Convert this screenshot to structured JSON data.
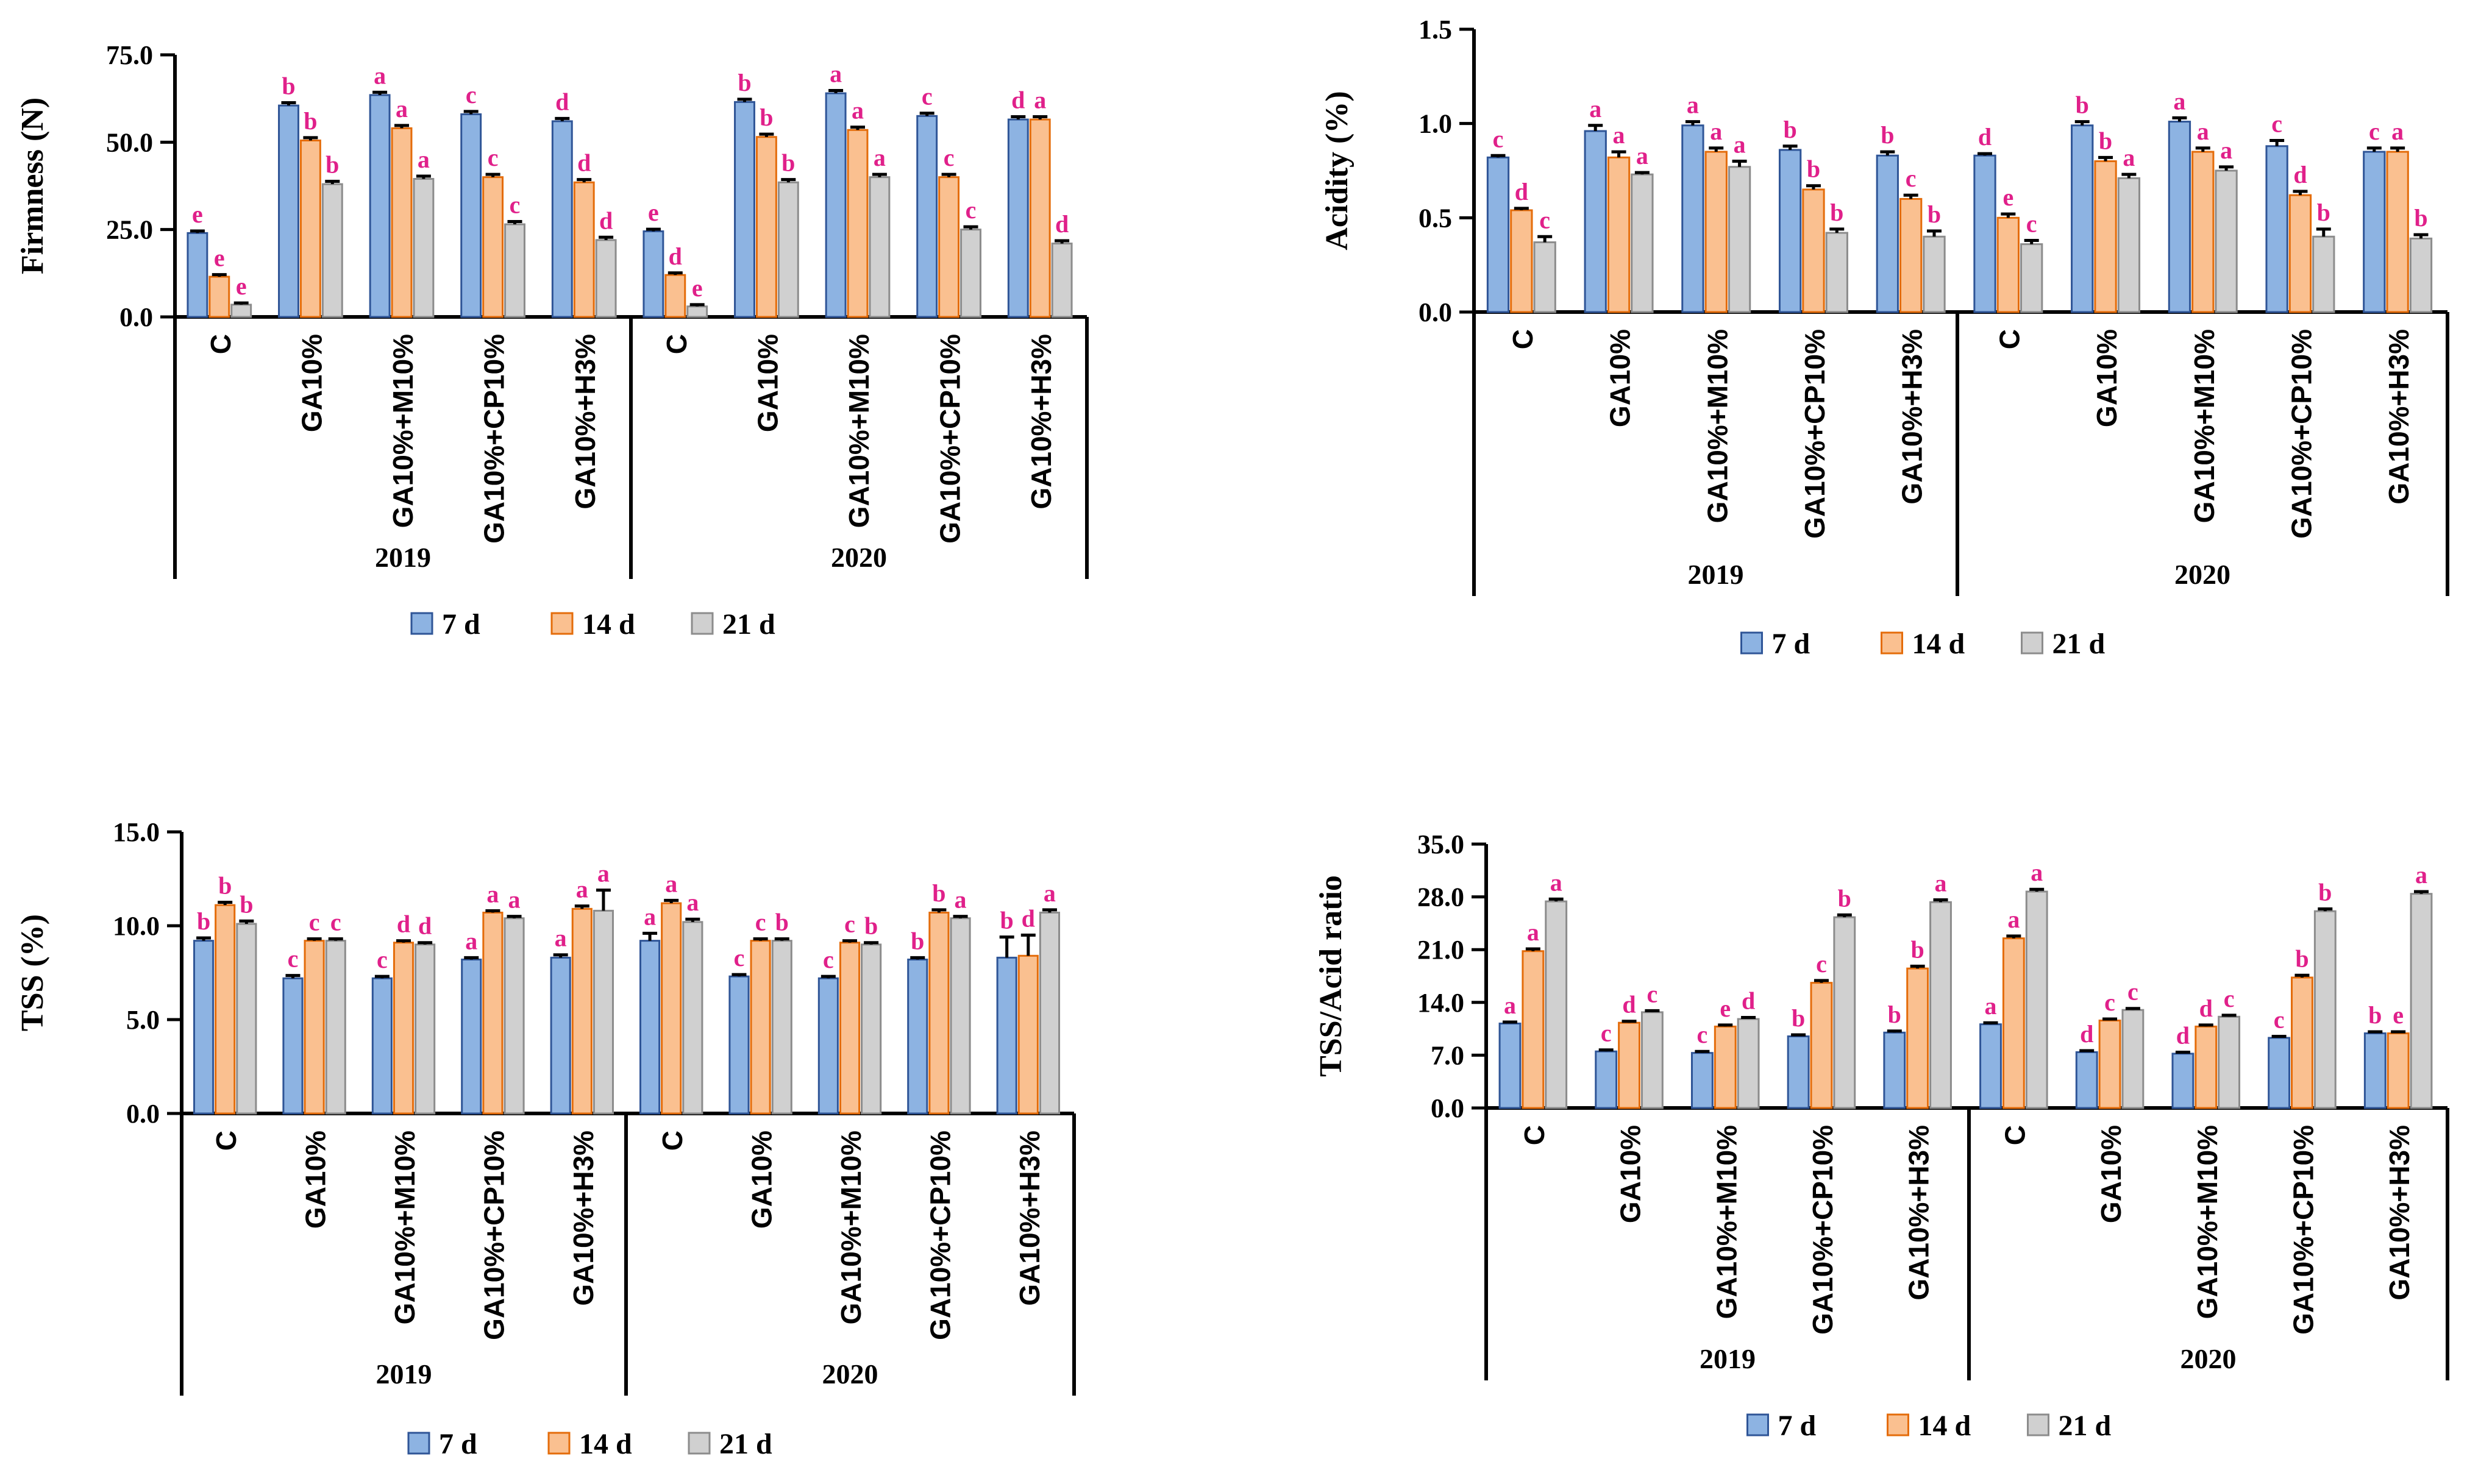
{
  "colors": {
    "d7": "#8DB3E2",
    "d7_stroke": "#2F5597",
    "d14": "#FAC090",
    "d14_stroke": "#E46C0A",
    "d21": "#D0D0D0",
    "d21_stroke": "#8C8C8C",
    "letters": "#E0208A",
    "axis": "#000000"
  },
  "chart_data": [
    {
      "type": "bar",
      "title": "",
      "ylabel": "Firmness (N)",
      "xlabel": "",
      "ylim": [
        0,
        75
      ],
      "yticks": [
        "0.0",
        "25.0",
        "50.0",
        "75.0"
      ],
      "years": [
        "2019",
        "2020"
      ],
      "categories": [
        "C",
        "GA10%",
        "GA10%+M10%",
        "GA10%+CP10%",
        "GA10%+H3%",
        "C",
        "GA10%",
        "GA10%+M10%",
        "GA10%+CP10%",
        "GA10%+H3%"
      ],
      "series": [
        {
          "name": "7 d",
          "values": [
            24,
            60.5,
            63.5,
            58,
            56,
            24.5,
            61.5,
            64,
            57.5,
            56.5
          ],
          "errors": [
            0.6,
            0.8,
            0.8,
            0.8,
            0.8,
            0.6,
            0.8,
            0.8,
            0.8,
            0.8
          ],
          "letters": [
            "e",
            "b",
            "a",
            "c",
            "d",
            "e",
            "b",
            "a",
            "c",
            "d"
          ]
        },
        {
          "name": "14 d",
          "values": [
            11.5,
            50.5,
            54,
            40,
            38.5,
            12,
            51.5,
            53.5,
            40,
            56.5
          ],
          "errors": [
            0.6,
            0.8,
            0.8,
            0.8,
            0.8,
            0.6,
            0.8,
            0.8,
            0.8,
            0.8
          ],
          "letters": [
            "e",
            "b",
            "a",
            "c",
            "d",
            "d",
            "b",
            "a",
            "c",
            "a"
          ]
        },
        {
          "name": "21 d",
          "values": [
            3.5,
            38,
            39.5,
            26.5,
            22,
            3,
            38.5,
            40,
            25,
            21
          ],
          "errors": [
            0.5,
            0.8,
            0.8,
            0.8,
            0.8,
            0.5,
            0.8,
            0.8,
            0.8,
            0.8
          ],
          "letters": [
            "e",
            "b",
            "a",
            "c",
            "d",
            "e",
            "b",
            "a",
            "c",
            "d"
          ]
        }
      ],
      "legend": [
        "7 d",
        "14 d",
        "21 d"
      ]
    },
    {
      "type": "bar",
      "title": "",
      "ylabel": "Acidity (%)",
      "xlabel": "",
      "ylim": [
        0,
        1.5
      ],
      "yticks": [
        "0.0",
        "0.5",
        "1.0",
        "1.5"
      ],
      "years": [
        "2019",
        "2020"
      ],
      "categories": [
        "C",
        "GA10%",
        "GA10%+M10%",
        "GA10%+CP10%",
        "GA10%+H3%",
        "C",
        "GA10%",
        "GA10%+M10%",
        "GA10%+CP10%",
        "GA10%+H3%"
      ],
      "series": [
        {
          "name": "7 d",
          "values": [
            0.82,
            0.96,
            0.99,
            0.86,
            0.83,
            0.83,
            0.99,
            1.01,
            0.88,
            0.85
          ],
          "errors": [
            0.01,
            0.03,
            0.02,
            0.02,
            0.02,
            0.01,
            0.02,
            0.02,
            0.03,
            0.02
          ],
          "letters": [
            "c",
            "a",
            "a",
            "b",
            "b",
            "d",
            "b",
            "a",
            "c",
            "c"
          ]
        },
        {
          "name": "14 d",
          "values": [
            0.54,
            0.82,
            0.85,
            0.65,
            0.6,
            0.5,
            0.8,
            0.85,
            0.62,
            0.85
          ],
          "errors": [
            0.01,
            0.03,
            0.02,
            0.02,
            0.02,
            0.02,
            0.02,
            0.02,
            0.02,
            0.02
          ],
          "letters": [
            "d",
            "a",
            "a",
            "b",
            "c",
            "e",
            "b",
            "a",
            "d",
            "a"
          ]
        },
        {
          "name": "21 d",
          "values": [
            0.37,
            0.73,
            0.77,
            0.42,
            0.4,
            0.36,
            0.71,
            0.75,
            0.4,
            0.39
          ],
          "errors": [
            0.03,
            0.01,
            0.03,
            0.02,
            0.03,
            0.02,
            0.02,
            0.02,
            0.04,
            0.02
          ],
          "letters": [
            "c",
            "a",
            "a",
            "b",
            "b",
            "c",
            "a",
            "a",
            "b",
            "b"
          ]
        }
      ],
      "legend": [
        "7 d",
        "14 d",
        "21 d"
      ]
    },
    {
      "type": "bar",
      "title": "",
      "ylabel": "TSS (%)",
      "xlabel": "",
      "ylim": [
        0,
        15
      ],
      "yticks": [
        "0.0",
        "5.0",
        "10.0",
        "15.0"
      ],
      "years": [
        "2019",
        "2020"
      ],
      "categories": [
        "C",
        "GA10%",
        "GA10%+M10%",
        "GA10%+CP10%",
        "GA10%+H3%",
        "C",
        "GA10%",
        "GA10%+M10%",
        "GA10%+CP10%",
        "GA10%+H3%"
      ],
      "series": [
        {
          "name": "7 d",
          "values": [
            9.2,
            7.2,
            7.2,
            8.2,
            8.3,
            9.2,
            7.3,
            7.2,
            8.2,
            8.3
          ],
          "errors": [
            0.15,
            0.15,
            0.1,
            0.1,
            0.15,
            0.4,
            0.1,
            0.1,
            0.1,
            1.1
          ],
          "letters": [
            "b",
            "c",
            "c",
            "a",
            "a",
            "a",
            "c",
            "c",
            "b",
            "b"
          ]
        },
        {
          "name": "14 d",
          "values": [
            11.1,
            9.2,
            9.1,
            10.7,
            10.9,
            11.2,
            9.2,
            9.1,
            10.7,
            8.4
          ],
          "errors": [
            0.15,
            0.1,
            0.1,
            0.1,
            0.15,
            0.15,
            0.1,
            0.1,
            0.15,
            1.1
          ],
          "letters": [
            "b",
            "c",
            "d",
            "a",
            "a",
            "a",
            "c",
            "c",
            "b",
            "d"
          ]
        },
        {
          "name": "21 d",
          "values": [
            10.1,
            9.2,
            9.0,
            10.4,
            10.8,
            10.2,
            9.2,
            9.0,
            10.4,
            10.7
          ],
          "errors": [
            0.15,
            0.1,
            0.1,
            0.1,
            1.1,
            0.15,
            0.1,
            0.1,
            0.1,
            0.15
          ],
          "letters": [
            "b",
            "c",
            "d",
            "a",
            "a",
            "a",
            "b",
            "b",
            "a",
            "a"
          ]
        }
      ],
      "legend": [
        "7 d",
        "14 d",
        "21 d"
      ]
    },
    {
      "type": "bar",
      "title": "",
      "ylabel": "TSS/Acid ratio",
      "xlabel": "",
      "ylim": [
        0,
        35
      ],
      "yticks": [
        "0.0",
        "7.0",
        "14.0",
        "21.0",
        "28.0",
        "35.0"
      ],
      "years": [
        "2019",
        "2020"
      ],
      "categories": [
        "C",
        "GA10%",
        "GA10%+M10%",
        "GA10%+CP10%",
        "GA10%+H3%",
        "C",
        "GA10%",
        "GA10%+M10%",
        "GA10%+CP10%",
        "GA10%+H3%"
      ],
      "series": [
        {
          "name": "7 d",
          "values": [
            11.2,
            7.5,
            7.3,
            9.5,
            10.0,
            11.1,
            7.4,
            7.2,
            9.3,
            9.9
          ],
          "errors": [
            0.2,
            0.2,
            0.2,
            0.2,
            0.2,
            0.2,
            0.2,
            0.2,
            0.2,
            0.2
          ],
          "letters": [
            "a",
            "c",
            "c",
            "b",
            "b",
            "a",
            "d",
            "d",
            "c",
            "b"
          ]
        },
        {
          "name": "14 d",
          "values": [
            20.8,
            11.3,
            10.8,
            16.6,
            18.5,
            22.5,
            11.6,
            10.8,
            17.3,
            9.9
          ],
          "errors": [
            0.3,
            0.2,
            0.2,
            0.3,
            0.3,
            0.3,
            0.2,
            0.2,
            0.3,
            0.2
          ],
          "letters": [
            "a",
            "d",
            "e",
            "c",
            "b",
            "a",
            "c",
            "d",
            "b",
            "e"
          ]
        },
        {
          "name": "21 d",
          "values": [
            27.4,
            12.7,
            11.8,
            25.3,
            27.3,
            28.7,
            13.0,
            12.1,
            26.1,
            28.4
          ],
          "errors": [
            0.3,
            0.2,
            0.2,
            0.3,
            0.3,
            0.3,
            0.2,
            0.2,
            0.3,
            0.3
          ],
          "letters": [
            "a",
            "c",
            "d",
            "b",
            "a",
            "a",
            "c",
            "c",
            "b",
            "a"
          ]
        }
      ],
      "legend": [
        "7 d",
        "14 d",
        "21 d"
      ]
    }
  ]
}
